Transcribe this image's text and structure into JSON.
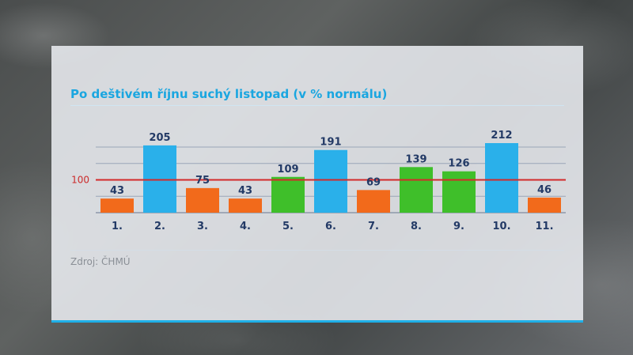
{
  "panel": {
    "source": "Zdroj: ČHMÚ"
  },
  "chart_data": {
    "type": "bar",
    "title": "Po deštivém říjnu suchý listopad (v % normálu)",
    "categories": [
      "1.",
      "2.",
      "3.",
      "4.",
      "5.",
      "6.",
      "7.",
      "8.",
      "9.",
      "10.",
      "11."
    ],
    "values": [
      43,
      205,
      75,
      43,
      109,
      191,
      69,
      139,
      126,
      212,
      46
    ],
    "bar_colors": [
      "#f26a1b",
      "#2ab0ea",
      "#f26a1b",
      "#f26a1b",
      "#3fbf2a",
      "#2ab0ea",
      "#f26a1b",
      "#3fbf2a",
      "#3fbf2a",
      "#2ab0ea",
      "#f26a1b"
    ],
    "reference_line": {
      "value": 100,
      "label": "100",
      "color": "#d32a2a"
    },
    "ylim": [
      0,
      212
    ],
    "grid": true,
    "legend": "none"
  }
}
